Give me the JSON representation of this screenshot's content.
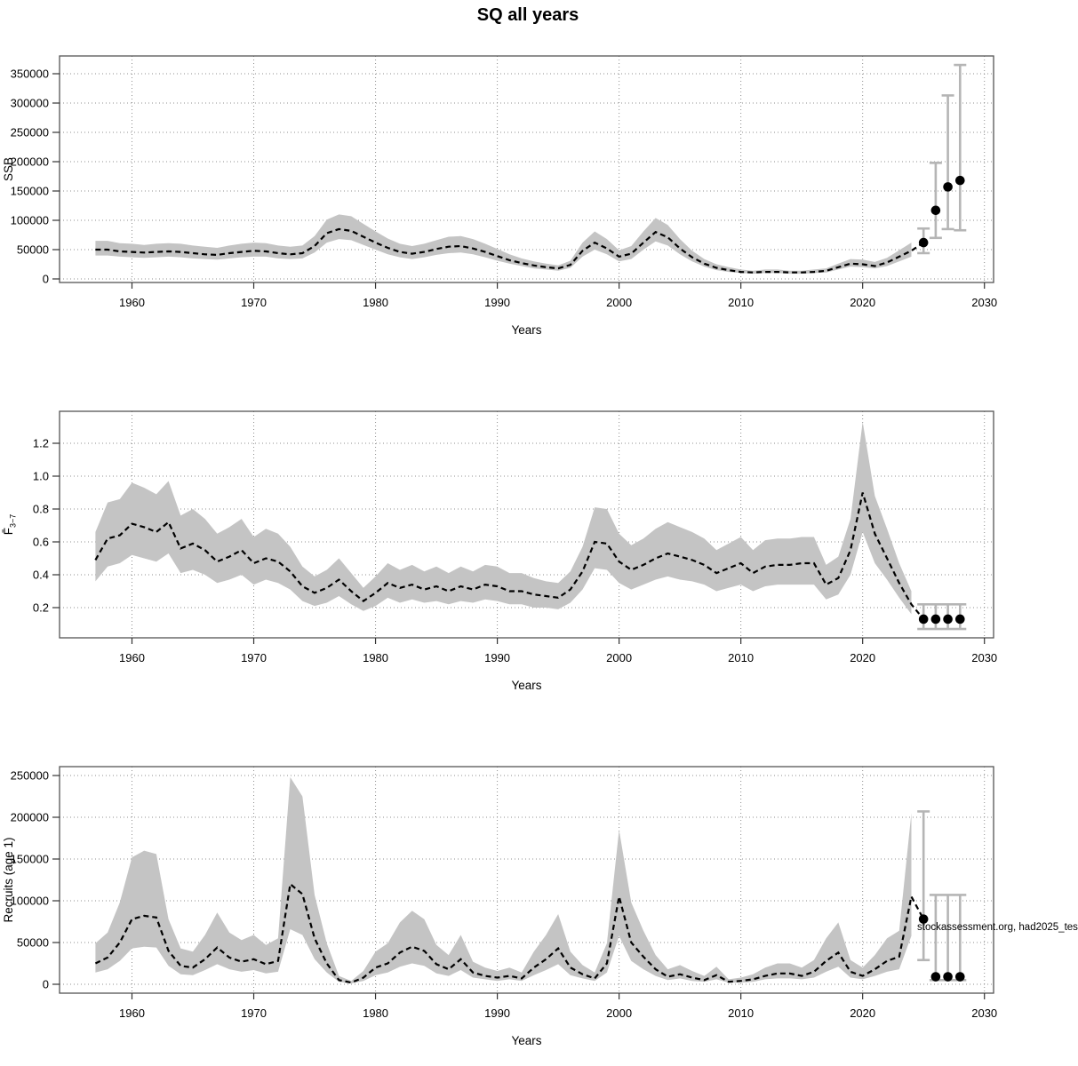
{
  "title": "SQ all years",
  "watermark": "stockassessment.org, had2025_tes",
  "colors": {
    "band": "#c4c4c4",
    "estimate_line": "#000000",
    "grid": "#8f8f8f",
    "error_bar": "#b5b5b5",
    "forecast_dot": "#000000",
    "frame": "#555555"
  },
  "chart_data": [
    {
      "type": "line",
      "id": "ssb",
      "ylabel": "SSB",
      "xlabel": "Years",
      "xlim": [
        1954,
        2031
      ],
      "ylim": [
        0,
        364000
      ],
      "grid": true,
      "xticks": [
        1960,
        1970,
        1980,
        1990,
        2000,
        2010,
        2020,
        2030
      ],
      "xticklabels": [
        "1960",
        "1970",
        "1980",
        "1990",
        "2000",
        "2010",
        "2020",
        "2030"
      ],
      "yticks": [
        0,
        50000,
        100000,
        150000,
        200000,
        250000,
        300000,
        350000
      ],
      "yticklabels": [
        "0",
        "50000",
        "100000",
        "150000",
        "200000",
        "250000",
        "300000",
        "350000"
      ],
      "x": [
        1957,
        1958,
        1959,
        1960,
        1961,
        1962,
        1963,
        1964,
        1965,
        1966,
        1967,
        1968,
        1969,
        1970,
        1971,
        1972,
        1973,
        1974,
        1975,
        1976,
        1977,
        1978,
        1979,
        1980,
        1981,
        1982,
        1983,
        1984,
        1985,
        1986,
        1987,
        1988,
        1989,
        1990,
        1991,
        1992,
        1993,
        1994,
        1995,
        1996,
        1997,
        1998,
        1999,
        2000,
        2001,
        2002,
        2003,
        2004,
        2005,
        2006,
        2007,
        2008,
        2009,
        2010,
        2011,
        2012,
        2013,
        2014,
        2015,
        2016,
        2017,
        2018,
        2019,
        2020,
        2021,
        2022,
        2023,
        2024
      ],
      "series": [
        {
          "name": "estimate",
          "values": [
            50000,
            50000,
            47000,
            46000,
            45000,
            46000,
            47000,
            46000,
            44000,
            42000,
            41000,
            44000,
            46000,
            48000,
            47000,
            44000,
            42000,
            44000,
            56000,
            78000,
            85000,
            82000,
            72000,
            62000,
            53000,
            46000,
            43000,
            46000,
            51000,
            55000,
            56000,
            52000,
            46000,
            39000,
            32000,
            27000,
            23000,
            20000,
            18000,
            24000,
            48000,
            62000,
            52000,
            38000,
            43000,
            62000,
            80000,
            71000,
            52000,
            37000,
            26000,
            19000,
            15000,
            12000,
            11000,
            12000,
            12000,
            11000,
            11000,
            12000,
            14000,
            20000,
            26000,
            25000,
            22000,
            28000,
            38000,
            48000
          ]
        },
        {
          "name": "ci_low",
          "values": [
            40000,
            40000,
            38000,
            37000,
            36000,
            37000,
            38000,
            37000,
            35000,
            34000,
            33000,
            35000,
            37000,
            38000,
            38000,
            35000,
            34000,
            35000,
            45000,
            62000,
            68000,
            66000,
            58000,
            50000,
            42000,
            37000,
            34000,
            37000,
            41000,
            44000,
            45000,
            42000,
            37000,
            31000,
            26000,
            22000,
            18000,
            16000,
            14000,
            19000,
            38000,
            50000,
            42000,
            30000,
            34000,
            50000,
            64000,
            57000,
            42000,
            30000,
            21000,
            15000,
            12000,
            10000,
            9000,
            10000,
            10000,
            9000,
            9000,
            10000,
            11000,
            16000,
            21000,
            20000,
            18000,
            22000,
            30000,
            38000
          ]
        },
        {
          "name": "ci_high",
          "values": [
            65000,
            65000,
            61000,
            60000,
            58000,
            60000,
            61000,
            60000,
            57000,
            55000,
            53000,
            57000,
            60000,
            62000,
            61000,
            57000,
            55000,
            57000,
            73000,
            101000,
            110000,
            107000,
            94000,
            81000,
            69000,
            60000,
            56000,
            60000,
            66000,
            72000,
            73000,
            68000,
            60000,
            51000,
            42000,
            35000,
            30000,
            26000,
            23000,
            31000,
            62000,
            81000,
            68000,
            49000,
            56000,
            81000,
            104000,
            92000,
            68000,
            48000,
            34000,
            25000,
            20000,
            16000,
            14000,
            16000,
            16000,
            14000,
            14000,
            16000,
            18000,
            26000,
            34000,
            33000,
            29000,
            36000,
            49000,
            62000
          ]
        }
      ],
      "forecast": {
        "x": [
          2025,
          2026,
          2027,
          2028
        ],
        "y": [
          62000,
          117000,
          157000,
          168000
        ],
        "lo": [
          44000,
          70000,
          85000,
          83000
        ],
        "hi": [
          86000,
          198000,
          313000,
          365000
        ]
      }
    },
    {
      "type": "line",
      "id": "fbar",
      "ylabel": "F3-7",
      "ylabel_main": "F̄",
      "ylabel_sub": "3−7",
      "xlabel": "Years",
      "xlim": [
        1954,
        2031
      ],
      "ylim": [
        0.05,
        1.38
      ],
      "grid": true,
      "xticks": [
        1960,
        1970,
        1980,
        1990,
        2000,
        2010,
        2020,
        2030
      ],
      "xticklabels": [
        "1960",
        "1970",
        "1980",
        "1990",
        "2000",
        "2010",
        "2020",
        "2030"
      ],
      "yticks": [
        0.2,
        0.4,
        0.6,
        0.8,
        1.0,
        1.2
      ],
      "yticklabels": [
        "0.2",
        "0.4",
        "0.6",
        "0.8",
        "1.0",
        "1.2"
      ],
      "x": [
        1957,
        1958,
        1959,
        1960,
        1961,
        1962,
        1963,
        1964,
        1965,
        1966,
        1967,
        1968,
        1969,
        1970,
        1971,
        1972,
        1973,
        1974,
        1975,
        1976,
        1977,
        1978,
        1979,
        1980,
        1981,
        1982,
        1983,
        1984,
        1985,
        1986,
        1987,
        1988,
        1989,
        1990,
        1991,
        1992,
        1993,
        1994,
        1995,
        1996,
        1997,
        1998,
        1999,
        2000,
        2001,
        2002,
        2003,
        2004,
        2005,
        2006,
        2007,
        2008,
        2009,
        2010,
        2011,
        2012,
        2013,
        2014,
        2015,
        2016,
        2017,
        2018,
        2019,
        2020,
        2021,
        2022,
        2023,
        2024
      ],
      "series": [
        {
          "name": "estimate",
          "values": [
            0.49,
            0.62,
            0.64,
            0.71,
            0.69,
            0.66,
            0.72,
            0.56,
            0.59,
            0.55,
            0.48,
            0.51,
            0.55,
            0.47,
            0.5,
            0.48,
            0.42,
            0.33,
            0.29,
            0.32,
            0.37,
            0.3,
            0.24,
            0.29,
            0.35,
            0.32,
            0.34,
            0.31,
            0.33,
            0.3,
            0.33,
            0.31,
            0.34,
            0.33,
            0.3,
            0.3,
            0.28,
            0.27,
            0.26,
            0.31,
            0.42,
            0.6,
            0.59,
            0.48,
            0.43,
            0.46,
            0.5,
            0.53,
            0.51,
            0.49,
            0.46,
            0.41,
            0.44,
            0.47,
            0.41,
            0.45,
            0.46,
            0.46,
            0.47,
            0.47,
            0.34,
            0.38,
            0.55,
            0.9,
            0.65,
            0.5,
            0.35,
            0.22
          ]
        },
        {
          "name": "ci_low",
          "values": [
            0.36,
            0.45,
            0.47,
            0.52,
            0.5,
            0.48,
            0.53,
            0.41,
            0.43,
            0.4,
            0.35,
            0.37,
            0.4,
            0.34,
            0.37,
            0.35,
            0.31,
            0.24,
            0.21,
            0.23,
            0.27,
            0.22,
            0.18,
            0.21,
            0.26,
            0.23,
            0.25,
            0.23,
            0.24,
            0.22,
            0.24,
            0.23,
            0.25,
            0.24,
            0.22,
            0.22,
            0.2,
            0.2,
            0.19,
            0.23,
            0.31,
            0.44,
            0.43,
            0.35,
            0.31,
            0.34,
            0.37,
            0.39,
            0.37,
            0.36,
            0.34,
            0.3,
            0.32,
            0.34,
            0.3,
            0.33,
            0.34,
            0.34,
            0.34,
            0.34,
            0.25,
            0.28,
            0.4,
            0.66,
            0.47,
            0.37,
            0.26,
            0.16
          ]
        },
        {
          "name": "ci_high",
          "values": [
            0.66,
            0.84,
            0.86,
            0.96,
            0.93,
            0.89,
            0.97,
            0.76,
            0.8,
            0.74,
            0.65,
            0.69,
            0.74,
            0.63,
            0.68,
            0.65,
            0.57,
            0.45,
            0.39,
            0.43,
            0.5,
            0.41,
            0.32,
            0.39,
            0.47,
            0.43,
            0.46,
            0.42,
            0.45,
            0.41,
            0.45,
            0.42,
            0.46,
            0.45,
            0.41,
            0.41,
            0.38,
            0.36,
            0.35,
            0.42,
            0.57,
            0.81,
            0.8,
            0.65,
            0.58,
            0.62,
            0.68,
            0.72,
            0.69,
            0.66,
            0.62,
            0.55,
            0.59,
            0.63,
            0.55,
            0.61,
            0.62,
            0.62,
            0.63,
            0.63,
            0.46,
            0.51,
            0.74,
            1.33,
            0.88,
            0.68,
            0.47,
            0.3
          ]
        }
      ],
      "forecast": {
        "x": [
          2025,
          2026,
          2027,
          2028
        ],
        "y": [
          0.13,
          0.13,
          0.13,
          0.13
        ],
        "lo": [
          0.07,
          0.07,
          0.07,
          0.07
        ],
        "hi": [
          0.22,
          0.22,
          0.22,
          0.22
        ]
      }
    },
    {
      "type": "line",
      "id": "recruits",
      "ylabel": "Recruits (age 1)",
      "xlabel": "Years",
      "xlim": [
        1954,
        2031
      ],
      "ylim": [
        0,
        260000
      ],
      "grid": true,
      "xticks": [
        1960,
        1970,
        1980,
        1990,
        2000,
        2010,
        2020,
        2030
      ],
      "xticklabels": [
        "1960",
        "1970",
        "1980",
        "1990",
        "2000",
        "2010",
        "2020",
        "2030"
      ],
      "yticks": [
        0,
        50000,
        100000,
        150000,
        200000,
        250000
      ],
      "yticklabels": [
        "0",
        "50000",
        "100000",
        "150000",
        "200000",
        "250000"
      ],
      "x": [
        1957,
        1958,
        1959,
        1960,
        1961,
        1962,
        1963,
        1964,
        1965,
        1966,
        1967,
        1968,
        1969,
        1970,
        1971,
        1972,
        1973,
        1974,
        1975,
        1976,
        1977,
        1978,
        1979,
        1980,
        1981,
        1982,
        1983,
        1984,
        1985,
        1986,
        1987,
        1988,
        1989,
        1990,
        1991,
        1992,
        1993,
        1994,
        1995,
        1996,
        1997,
        1998,
        1999,
        2000,
        2001,
        2002,
        2003,
        2004,
        2005,
        2006,
        2007,
        2008,
        2009,
        2010,
        2011,
        2012,
        2013,
        2014,
        2015,
        2016,
        2017,
        2018,
        2019,
        2020,
        2021,
        2022,
        2023,
        2024
      ],
      "series": [
        {
          "name": "estimate",
          "values": [
            25000,
            32000,
            50000,
            78000,
            82000,
            80000,
            40000,
            22000,
            20000,
            30000,
            44000,
            32000,
            27000,
            30000,
            24000,
            28000,
            120000,
            108000,
            55000,
            25000,
            5000,
            2000,
            8000,
            20000,
            25000,
            38000,
            45000,
            40000,
            24000,
            18000,
            30000,
            14000,
            10000,
            8000,
            10000,
            7000,
            20000,
            30000,
            43000,
            20000,
            12000,
            7000,
            25000,
            105000,
            50000,
            33000,
            18000,
            9000,
            12000,
            8000,
            5000,
            11000,
            3000,
            4000,
            6000,
            10000,
            13000,
            13000,
            10000,
            15000,
            28000,
            38000,
            15000,
            10000,
            18000,
            28000,
            33000,
            105000
          ]
        },
        {
          "name": "ci_low",
          "values": [
            14000,
            18000,
            28000,
            43000,
            45000,
            44000,
            22000,
            12000,
            11000,
            17000,
            24000,
            18000,
            15000,
            17000,
            13000,
            15000,
            66000,
            59000,
            30000,
            14000,
            3000,
            1000,
            4000,
            11000,
            14000,
            21000,
            25000,
            22000,
            13000,
            10000,
            17000,
            8000,
            6000,
            4000,
            6000,
            4000,
            11000,
            17000,
            24000,
            11000,
            7000,
            4000,
            14000,
            58000,
            28000,
            18000,
            10000,
            5000,
            7000,
            4000,
            3000,
            6000,
            2000,
            2000,
            3000,
            6000,
            7000,
            7000,
            6000,
            8000,
            15000,
            21000,
            8000,
            6000,
            10000,
            15000,
            18000,
            58000
          ]
        },
        {
          "name": "ci_high",
          "values": [
            49000,
            62000,
            98000,
            152000,
            160000,
            156000,
            78000,
            43000,
            39000,
            59000,
            86000,
            62000,
            53000,
            59000,
            47000,
            55000,
            248000,
            225000,
            107000,
            49000,
            10000,
            4000,
            16000,
            39000,
            49000,
            74000,
            88000,
            78000,
            47000,
            35000,
            59000,
            27000,
            20000,
            16000,
            20000,
            14000,
            39000,
            59000,
            84000,
            39000,
            23000,
            14000,
            49000,
            185000,
            98000,
            64000,
            35000,
            18000,
            23000,
            16000,
            10000,
            21000,
            6000,
            8000,
            12000,
            20000,
            25000,
            25000,
            20000,
            29000,
            55000,
            74000,
            29000,
            20000,
            35000,
            55000,
            64000,
            205000
          ]
        }
      ],
      "forecast": {
        "x": [
          2025,
          2026,
          2027,
          2028
        ],
        "y": [
          78000,
          9000,
          9000,
          9000
        ],
        "lo": [
          29000,
          5000,
          5000,
          5000
        ],
        "hi": [
          207000,
          107000,
          107000,
          107000
        ]
      }
    }
  ]
}
